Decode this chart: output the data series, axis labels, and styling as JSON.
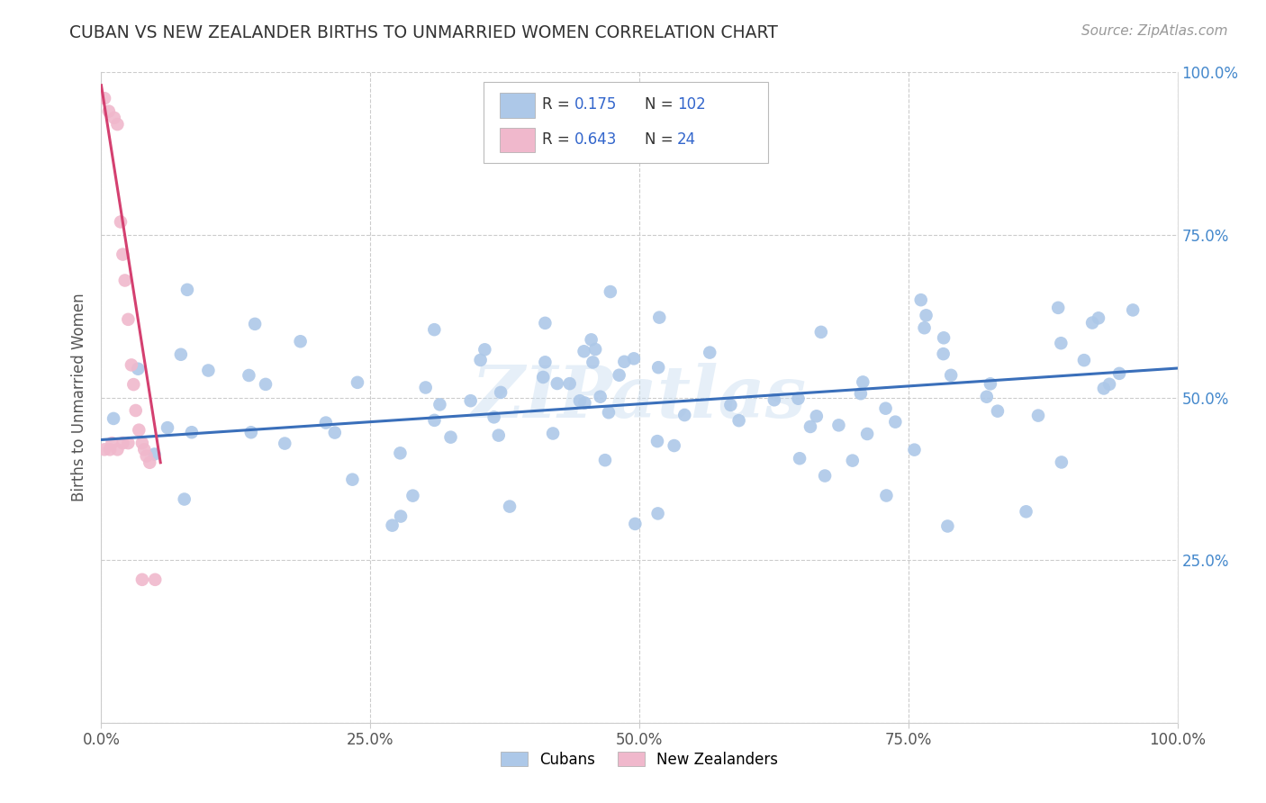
{
  "title": "CUBAN VS NEW ZEALANDER BIRTHS TO UNMARRIED WOMEN CORRELATION CHART",
  "source": "Source: ZipAtlas.com",
  "ylabel": "Births to Unmarried Women",
  "x_min": 0.0,
  "x_max": 1.0,
  "y_min": 0.0,
  "y_max": 1.0,
  "x_ticks": [
    0.0,
    0.25,
    0.5,
    0.75,
    1.0
  ],
  "y_ticks": [
    0.0,
    0.25,
    0.5,
    0.75,
    1.0
  ],
  "x_tick_labels": [
    "0.0%",
    "25.0%",
    "50.0%",
    "75.0%",
    "100.0%"
  ],
  "y_tick_labels_right": [
    "",
    "25.0%",
    "50.0%",
    "75.0%",
    "100.0%"
  ],
  "cubans_R": 0.175,
  "cubans_N": 102,
  "nz_R": 0.643,
  "nz_N": 24,
  "cubans_color": "#adc8e8",
  "nz_color": "#f0b8cc",
  "trend_cubans_color": "#3a6fba",
  "trend_nz_color": "#d44070",
  "background_color": "#ffffff",
  "watermark": "ZIPatlas",
  "trend_cub_x0": 0.0,
  "trend_cub_y0": 0.435,
  "trend_cub_x1": 1.0,
  "trend_cub_y1": 0.545,
  "trend_nz_x0": 0.0,
  "trend_nz_y0": 0.98,
  "trend_nz_x1": 0.055,
  "trend_nz_y1": 0.4
}
